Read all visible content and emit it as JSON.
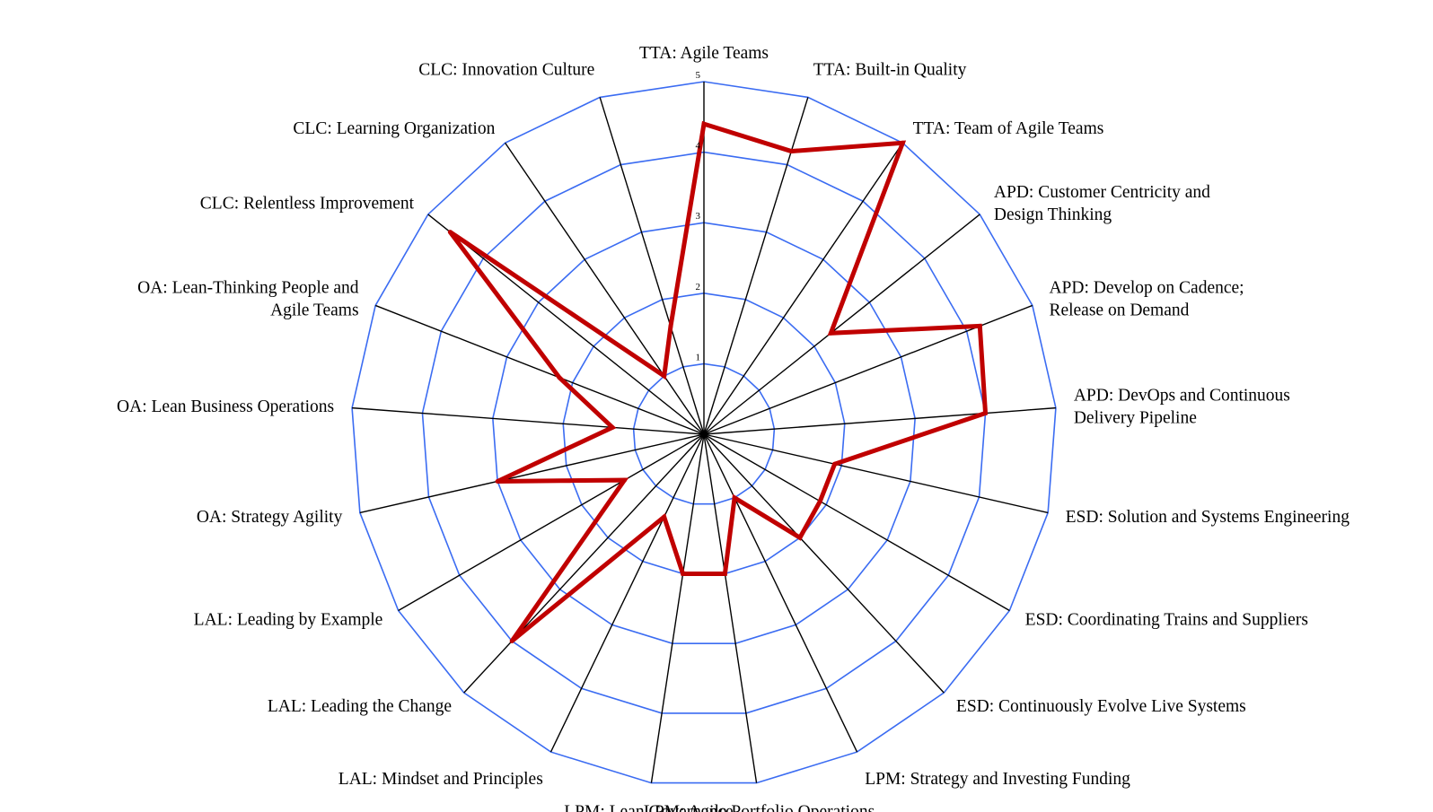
{
  "chart_data": {
    "type": "radar",
    "categories": [
      "TTA: Agile Teams",
      "TTA: Built-in Quality",
      "TTA: Team of Agile Teams",
      "APD: Customer Centricity and Design Thinking",
      "APD: Develop on Cadence; Release on Demand",
      "APD: DevOps and Continuous Delivery Pipeline",
      "ESD: Solution and Systems Engineering",
      "ESD: Coordinating Trains and Suppliers",
      "ESD: Continuously Evolve Live Systems",
      "LPM: Strategy and Investing Funding",
      "LPM: Agile Portfolio Operations",
      "LPM: Lean Governance",
      "LAL: Mindset and Principles",
      "LAL: Leading the Change",
      "LAL: Leading by Example",
      "OA: Strategy Agility",
      "OA: Lean Business Operations",
      "OA: Lean-Thinking People and Agile Teams",
      "CLC: Relentless Improvement",
      "CLC: Learning Organization",
      "CLC: Innovation Culture"
    ],
    "label_lines": [
      [
        "TTA: Agile Teams"
      ],
      [
        "TTA: Built-in Quality"
      ],
      [
        "TTA: Team of Agile Teams"
      ],
      [
        "APD: Customer Centricity and",
        "Design Thinking"
      ],
      [
        "APD: Develop on Cadence;",
        "Release on Demand"
      ],
      [
        "APD: DevOps and Continuous",
        "Delivery Pipeline"
      ],
      [
        "ESD: Solution and Systems Engineering"
      ],
      [
        "ESD: Coordinating Trains and Suppliers"
      ],
      [
        "ESD: Continuously Evolve Live Systems"
      ],
      [
        "LPM: Strategy and Investing Funding"
      ],
      [
        "LPM: Agile Portfolio Operations"
      ],
      [
        "LPM: Lean Governance"
      ],
      [
        "LAL: Mindset and Principles"
      ],
      [
        "LAL: Leading the Change"
      ],
      [
        "LAL: Leading by Example"
      ],
      [
        "OA: Strategy Agility"
      ],
      [
        "OA: Lean Business Operations"
      ],
      [
        "OA: Lean-Thinking People and",
        " Agile Teams"
      ],
      [
        "CLC: Relentless Improvement"
      ],
      [
        "CLC: Learning Organization"
      ],
      [
        "CLC: Innovation Culture"
      ]
    ],
    "series": [
      {
        "values": [
          4.4,
          4.2,
          5.0,
          2.3,
          4.2,
          4.0,
          1.9,
          1.9,
          2.0,
          1.0,
          2.0,
          2.0,
          1.3,
          4.0,
          1.3,
          3.0,
          1.3,
          2.2,
          4.6,
          1.0,
          1.6
        ]
      }
    ],
    "radial_ticks": [
      "1",
      "2",
      "3",
      "4",
      "5"
    ],
    "range": [
      0,
      5
    ],
    "grid_color": "#3b6cf2",
    "spoke_color": "#000000",
    "series_color": "#c00000"
  }
}
